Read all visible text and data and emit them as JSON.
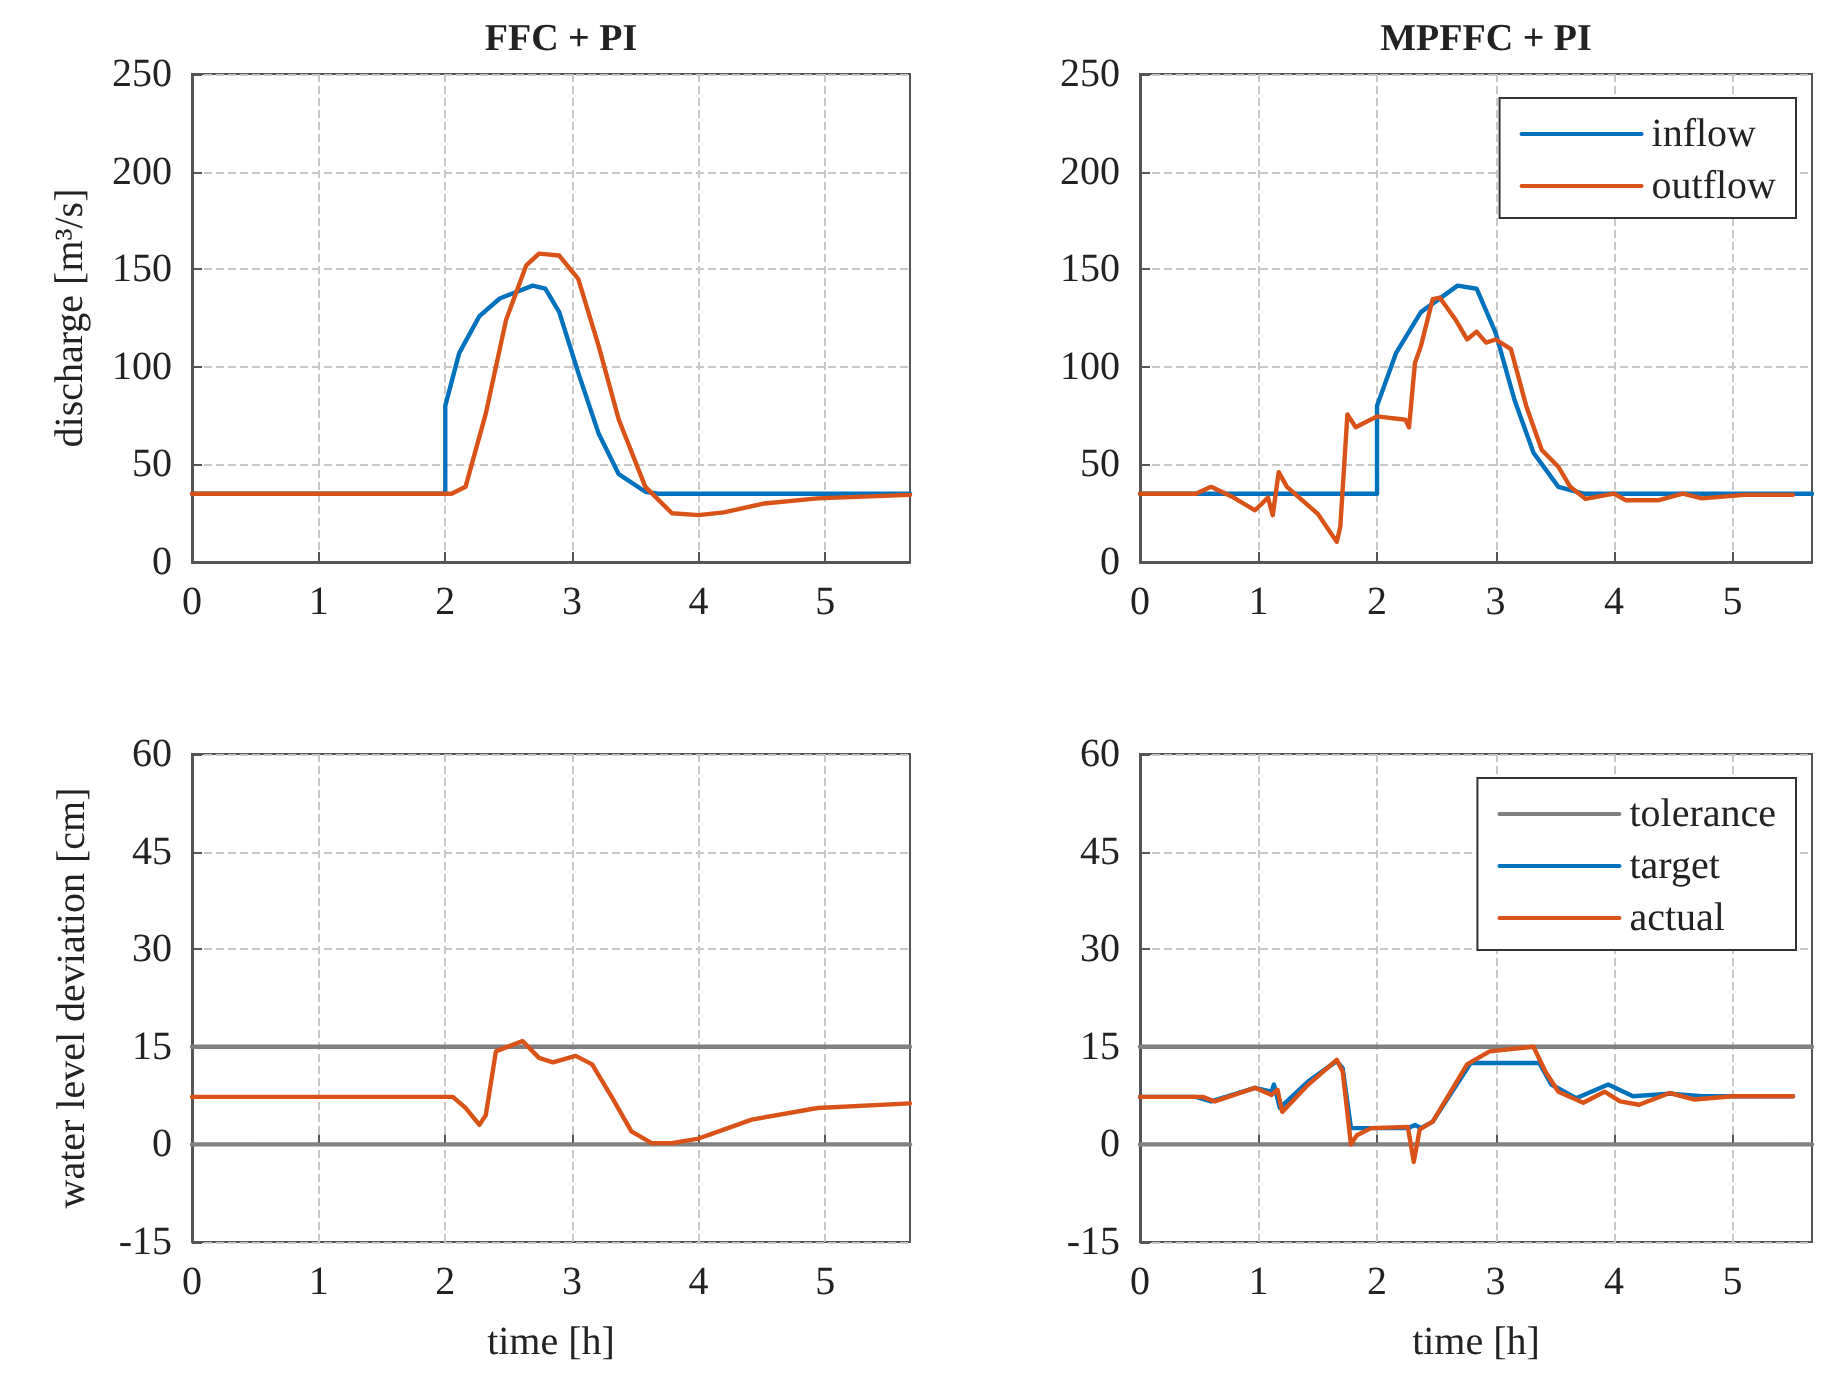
{
  "chart_data": [
    {
      "type": "line",
      "title": "FFC + PI",
      "ylabel": "discharge [m³/s]",
      "xlim": [
        0,
        5.67
      ],
      "xticks": [
        0,
        1,
        2,
        3,
        4,
        5
      ],
      "ylim": [
        0,
        250
      ],
      "yticks": [
        0,
        50,
        100,
        150,
        200,
        250
      ],
      "grid": true,
      "marker": "none",
      "legend": false,
      "series": [
        {
          "color": "#0072bd",
          "x": [
            0,
            2,
            2,
            2.11,
            2.27,
            2.43,
            2.69,
            2.79,
            2.9,
            3.05,
            3.21,
            3.37,
            3.58,
            3.68,
            5.67
          ],
          "values": [
            35,
            35,
            80,
            107,
            126,
            135,
            141.6,
            140,
            128,
            97,
            66,
            45,
            36,
            35,
            35
          ]
        },
        {
          "color": "#d95319",
          "x": [
            0,
            2.05,
            2.16,
            2.32,
            2.48,
            2.64,
            2.74,
            2.9,
            3.05,
            3.21,
            3.37,
            3.58,
            3.79,
            4.0,
            4.2,
            4.52,
            4.94,
            5.67
          ],
          "values": [
            35,
            35,
            38.5,
            76,
            124,
            152,
            158,
            157,
            145,
            111,
            73,
            38.5,
            25,
            24,
            25.4,
            30,
            32.6,
            34.4
          ]
        }
      ]
    },
    {
      "type": "line",
      "title": "MPFFC + PI",
      "xlim": [
        0,
        5.67
      ],
      "xticks": [
        0,
        1,
        2,
        3,
        4,
        5
      ],
      "ylim": [
        0,
        250
      ],
      "yticks": [
        0,
        50,
        100,
        150,
        200,
        250
      ],
      "grid": true,
      "marker": "none",
      "legend": "top right",
      "series": [
        {
          "name": "inflow",
          "color": "#0072bd",
          "x": [
            0,
            2,
            2,
            2.16,
            2.37,
            2.68,
            2.84,
            3.0,
            3.16,
            3.32,
            3.53,
            3.74,
            5.67
          ],
          "values": [
            35,
            35,
            80,
            107,
            128,
            141.6,
            140,
            117.5,
            83,
            56,
            38.5,
            35,
            35
          ]
        },
        {
          "name": "outflow",
          "color": "#d95319",
          "x": [
            0,
            0.47,
            0.6,
            0.79,
            0.97,
            1.08,
            1.12,
            1.17,
            1.24,
            1.37,
            1.5,
            1.66,
            1.69,
            1.75,
            1.82,
            2.0,
            2.24,
            2.27,
            2.32,
            2.37,
            2.47,
            2.53,
            2.66,
            2.76,
            2.84,
            2.92,
            3.0,
            3.13,
            3.26,
            3.39,
            3.53,
            3.63,
            3.76,
            4.0,
            4.1,
            4.37,
            4.58,
            4.74,
            5.1,
            5.51
          ],
          "values": [
            35,
            35,
            38.5,
            33,
            26.5,
            33,
            24,
            46,
            38.5,
            31.6,
            24.7,
            10.3,
            18,
            75.6,
            69,
            74.6,
            72.9,
            69,
            102,
            110.6,
            134.7,
            135.4,
            124.4,
            114,
            118,
            112.4,
            114,
            109,
            79.7,
            57.4,
            48.8,
            38.5,
            32.3,
            35,
            31.6,
            31.6,
            35,
            32.6,
            34.4,
            34.4
          ]
        }
      ]
    },
    {
      "type": "line",
      "ylabel": "water level deviation [cm]",
      "xlabel": "time [h]",
      "xlim": [
        0,
        5.67
      ],
      "xticks": [
        0,
        1,
        2,
        3,
        4,
        5
      ],
      "ylim": [
        -15,
        60
      ],
      "yticks": [
        -15,
        0,
        15,
        30,
        45,
        60
      ],
      "grid": true,
      "marker": "none",
      "legend": false,
      "series": [
        {
          "color": "#808080",
          "x": [
            0,
            5.67
          ],
          "values": [
            15,
            15
          ]
        },
        {
          "color": "#808080",
          "x": [
            0,
            5.67
          ],
          "values": [
            0,
            0
          ]
        },
        {
          "color": "#d95319",
          "x": [
            0,
            2.06,
            2.16,
            2.27,
            2.32,
            2.4,
            2.61,
            2.74,
            2.85,
            3.03,
            3.16,
            3.32,
            3.47,
            3.63,
            3.79,
            4.0,
            4.16,
            4.42,
            4.94,
            5.67
          ],
          "values": [
            7.3,
            7.3,
            5.6,
            3,
            4.5,
            14.3,
            15.9,
            13.3,
            12.6,
            13.6,
            12.3,
            7.1,
            2,
            0.2,
            0.2,
            0.9,
            2,
            3.8,
            5.6,
            6.3
          ]
        }
      ]
    },
    {
      "type": "line",
      "xlabel": "time [h]",
      "xlim": [
        0,
        5.67
      ],
      "xticks": [
        0,
        1,
        2,
        3,
        4,
        5
      ],
      "ylim": [
        -15,
        60
      ],
      "yticks": [
        -15,
        0,
        15,
        30,
        45,
        60
      ],
      "grid": true,
      "marker": "none",
      "legend": "top right",
      "series": [
        {
          "name": "tolerance",
          "color": "#808080",
          "x": [
            0,
            5.67
          ],
          "values": [
            15,
            15
          ]
        },
        {
          "color": "#808080",
          "x": [
            0,
            5.67
          ],
          "values": [
            0,
            0
          ]
        },
        {
          "name": "target",
          "color": "#0072bd",
          "x": [
            0,
            0.47,
            0.6,
            0.97,
            1.11,
            1.13,
            1.18,
            1.42,
            1.66,
            1.71,
            1.78,
            2.26,
            2.32,
            2.37,
            2.47,
            2.79,
            3.37,
            3.47,
            3.68,
            3.95,
            4.16,
            4.47,
            4.74,
            5.51
          ],
          "values": [
            7.3,
            7.3,
            6.6,
            8.7,
            8.1,
            9.2,
            5.6,
            9.7,
            12.8,
            11.7,
            2.5,
            2.5,
            3,
            2.5,
            3.5,
            12.5,
            12.5,
            9.2,
            7.1,
            9.2,
            7.4,
            7.8,
            7.4,
            7.4
          ]
        },
        {
          "name": "actual",
          "color": "#d95319",
          "x": [
            0,
            0.53,
            0.63,
            0.97,
            1.11,
            1.16,
            1.2,
            1.42,
            1.66,
            1.71,
            1.78,
            1.83,
            1.95,
            2.26,
            2.31,
            2.36,
            2.47,
            2.76,
            2.95,
            3.32,
            3.42,
            3.53,
            3.74,
            3.92,
            4.05,
            4.21,
            4.47,
            4.68,
            5.0,
            5.51
          ],
          "values": [
            7.3,
            7.3,
            6.6,
            8.7,
            7.6,
            8.4,
            5,
            9.2,
            13,
            11.2,
            0,
            1.4,
            2.5,
            2.7,
            -2.7,
            2.3,
            3.5,
            12.3,
            14.3,
            15,
            11.2,
            8.1,
            6.4,
            8.1,
            6.6,
            6.1,
            7.9,
            6.9,
            7.4,
            7.4
          ]
        }
      ]
    }
  ]
}
